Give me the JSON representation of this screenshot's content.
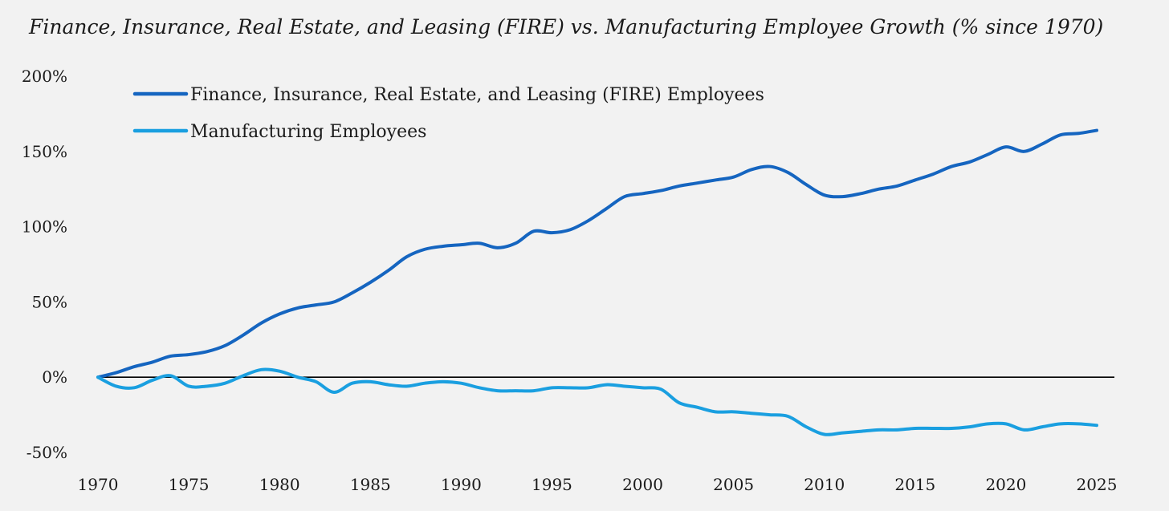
{
  "chart_data": {
    "type": "line",
    "title": "Finance, Insurance, Real Estate, and Leasing (FIRE) vs. Manufacturing Employee Growth (% since 1970)",
    "xlabel": "",
    "ylabel": "",
    "xlim": [
      1970,
      2025
    ],
    "ylim": [
      -50,
      200
    ],
    "x_ticks": [
      1970,
      1975,
      1980,
      1985,
      1990,
      1995,
      2000,
      2005,
      2010,
      2015,
      2020,
      2025
    ],
    "y_ticks": [
      {
        "value": 200,
        "label": "200%"
      },
      {
        "value": 150,
        "label": "150%"
      },
      {
        "value": 100,
        "label": "100%"
      },
      {
        "value": 50,
        "label": "50%"
      },
      {
        "value": 0,
        "label": "0%"
      },
      {
        "value": -50,
        "label": "-50%"
      }
    ],
    "zero_line": true,
    "grid": false,
    "legend_position": "top-left",
    "x": [
      1970,
      1971,
      1972,
      1973,
      1974,
      1975,
      1976,
      1977,
      1978,
      1979,
      1980,
      1981,
      1982,
      1983,
      1984,
      1985,
      1986,
      1987,
      1988,
      1989,
      1990,
      1991,
      1992,
      1993,
      1994,
      1995,
      1996,
      1997,
      1998,
      1999,
      2000,
      2001,
      2002,
      2003,
      2004,
      2005,
      2006,
      2007,
      2008,
      2009,
      2010,
      2011,
      2012,
      2013,
      2014,
      2015,
      2016,
      2017,
      2018,
      2019,
      2020,
      2021,
      2022,
      2023,
      2024,
      2025
    ],
    "series": [
      {
        "name": "Finance, Insurance, Real Estate, and Leasing (FIRE) Employees",
        "color": "#1565c0",
        "values": [
          0,
          3,
          7,
          10,
          14,
          15,
          17,
          21,
          28,
          36,
          42,
          46,
          48,
          50,
          56,
          63,
          71,
          80,
          85,
          87,
          88,
          89,
          86,
          89,
          97,
          96,
          98,
          104,
          112,
          120,
          122,
          124,
          127,
          129,
          131,
          133,
          138,
          140,
          136,
          128,
          121,
          120,
          122,
          125,
          127,
          131,
          135,
          140,
          143,
          148,
          153,
          150,
          155,
          161,
          162,
          164
        ]
      },
      {
        "name": "Manufacturing Employees",
        "color": "#1a9fe0",
        "values": [
          0,
          -6,
          -7,
          -2,
          1,
          -6,
          -6,
          -4,
          1,
          5,
          4,
          0,
          -3,
          -10,
          -4,
          -3,
          -5,
          -6,
          -4,
          -3,
          -4,
          -7,
          -9,
          -9,
          -9,
          -7,
          -7,
          -7,
          -5,
          -6,
          -7,
          -8,
          -17,
          -20,
          -23,
          -23,
          -24,
          -25,
          -26,
          -33,
          -38,
          -37,
          -36,
          -35,
          -35,
          -34,
          -34,
          -34,
          -33,
          -31,
          -31,
          -35,
          -33,
          -31,
          -31,
          -32
        ]
      }
    ]
  }
}
